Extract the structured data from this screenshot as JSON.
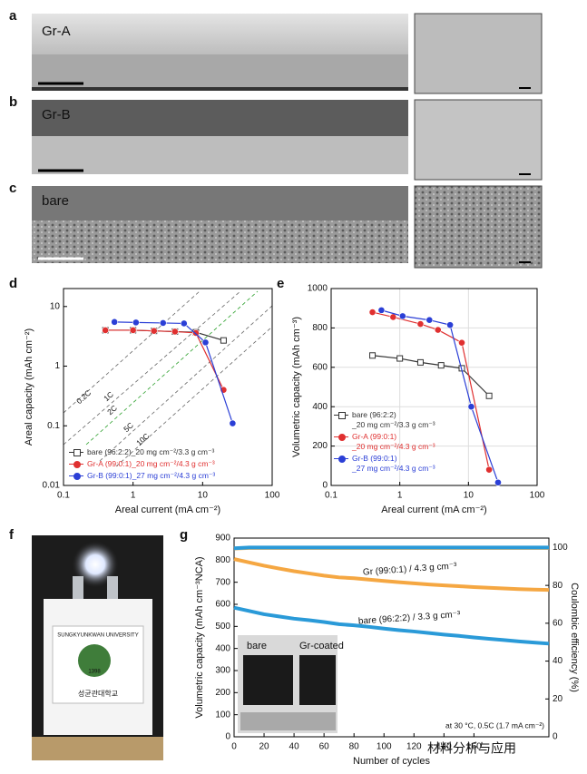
{
  "panel_labels": [
    "a",
    "b",
    "c",
    "d",
    "e",
    "f",
    "g"
  ],
  "images": [
    {
      "label": "Gr-A",
      "color": "#e03030"
    },
    {
      "label": "Gr-B",
      "color": "#2b3fd6"
    },
    {
      "label": "bare",
      "color": "#111111"
    }
  ],
  "photo": {
    "logo_text": "SUNGKYUNKWAN UNIVERSITY",
    "year": "1398",
    "korean": "성균관대학교",
    "inset_bare": "bare",
    "inset_coated": "Gr-coated"
  },
  "watermark": "材料分析与应用",
  "chart_data": [
    {
      "type": "line",
      "xlog": true,
      "ylog": true,
      "grid": false,
      "xlabel": "Areal current (mA cm⁻²)",
      "ylabel": "Areal capacity (mAh cm⁻²)",
      "xlim": [
        0.1,
        100
      ],
      "ylim": [
        0.01,
        20
      ],
      "xticks": [
        0.1,
        1,
        10,
        100
      ],
      "yticks": [
        0.01,
        0.1,
        1,
        10
      ],
      "annotations": [
        {
          "text": "0.2C",
          "color": "#333333"
        },
        {
          "text": "1C",
          "color": "#333333"
        },
        {
          "text": "2C",
          "color": "#2ca02c"
        },
        {
          "text": "5C",
          "color": "#333333"
        },
        {
          "text": "10C",
          "color": "#333333"
        }
      ],
      "series": [
        {
          "name": "bare (96:2:2)_20 mg cm⁻²/3.3 g cm⁻³",
          "color": "#333333",
          "marker": "square",
          "x": [
            0.4,
            1,
            2,
            4,
            8,
            20
          ],
          "values": [
            4.0,
            4.0,
            3.9,
            3.8,
            3.7,
            2.7
          ]
        },
        {
          "name": "Gr-A (99:0:1)_20 mg cm⁻²/4.3 g cm⁻³",
          "color": "#e03030",
          "marker": "circle",
          "x": [
            0.4,
            1,
            2,
            4,
            8,
            20
          ],
          "values": [
            4.0,
            4.0,
            3.9,
            3.8,
            3.6,
            0.4
          ]
        },
        {
          "name": "Gr-B (99:0:1)_27 mg cm⁻²/4.3 g cm⁻³",
          "color": "#2b3fd6",
          "marker": "circle",
          "x": [
            0.54,
            1.1,
            2.7,
            5.4,
            11,
            27
          ],
          "values": [
            5.5,
            5.4,
            5.3,
            5.2,
            2.5,
            0.11
          ]
        }
      ]
    },
    {
      "type": "line",
      "xlog": true,
      "ylog": false,
      "grid": true,
      "xlabel": "Areal current (mA cm⁻²)",
      "ylabel": "Volumetric capacity (mAh cm⁻³)",
      "xlim": [
        0.1,
        100
      ],
      "ylim": [
        0,
        1000
      ],
      "xticks": [
        0.1,
        1,
        10,
        100
      ],
      "yticks": [
        0,
        200,
        400,
        600,
        800,
        1000
      ],
      "series": [
        {
          "name": "bare (96:2:2)\n_20 mg cm⁻²/3.3 g cm⁻³",
          "color": "#333333",
          "marker": "square",
          "x": [
            0.4,
            1,
            2,
            4,
            8,
            20
          ],
          "values": [
            660,
            645,
            625,
            610,
            595,
            455
          ]
        },
        {
          "name": "Gr-A (99:0:1)\n_20 mg cm⁻²/4.3 g cm⁻³",
          "color": "#e03030",
          "marker": "circle",
          "x": [
            0.4,
            0.8,
            2,
            3.6,
            8,
            20
          ],
          "values": [
            880,
            855,
            820,
            790,
            725,
            80
          ]
        },
        {
          "name": "Gr-B (99:0:1)\n_27 mg cm⁻²/4.3 g cm⁻³",
          "color": "#2b3fd6",
          "marker": "circle",
          "x": [
            0.54,
            1.1,
            2.7,
            5.4,
            11,
            27
          ],
          "values": [
            890,
            860,
            840,
            815,
            400,
            15
          ]
        }
      ]
    },
    {
      "type": "line",
      "xlog": false,
      "ylog": false,
      "grid": false,
      "line_width": 4,
      "xlabel": "Number of cycles",
      "ylabel": "Volumetric capacity (mAh cm⁻³NCA)",
      "y2label": "Coulombic efficiency (%)",
      "xlim": [
        0,
        210
      ],
      "ylim": [
        0,
        900
      ],
      "y2lim": [
        0,
        105
      ],
      "xticks": [
        0,
        20,
        40,
        60,
        80,
        100,
        120,
        140,
        160
      ],
      "yticks": [
        0,
        100,
        200,
        300,
        400,
        500,
        600,
        700,
        800,
        900
      ],
      "y2ticks": [
        0,
        20,
        40,
        60,
        80,
        100
      ],
      "annotations": [
        {
          "text": "Gr (99:0:1) / 4.3 g cm⁻³",
          "color": "#e08a1e"
        },
        {
          "text": "bare (96:2:2) / 3.3 g cm⁻³",
          "color": "#1f7fc0"
        },
        {
          "text": "at 30 °C, 0.5C (1.7 mA cm⁻²)",
          "color": "#111111"
        }
      ],
      "x": [
        0,
        10,
        20,
        30,
        40,
        50,
        60,
        70,
        80,
        90,
        100,
        110,
        120,
        130,
        140,
        150,
        160,
        170,
        180,
        190,
        200,
        210
      ],
      "series": [
        {
          "name": "Gr capacity",
          "color": "#f5a742",
          "values": [
            805,
            790,
            775,
            762,
            750,
            740,
            730,
            722,
            718,
            712,
            706,
            700,
            695,
            690,
            686,
            682,
            678,
            675,
            672,
            669,
            667,
            665
          ]
        },
        {
          "name": "bare capacity",
          "color": "#2a9ad8",
          "values": [
            585,
            570,
            555,
            545,
            535,
            528,
            520,
            510,
            505,
            498,
            490,
            483,
            477,
            470,
            463,
            457,
            450,
            444,
            438,
            432,
            427,
            422
          ]
        },
        {
          "name": "Gr CE",
          "color": "#f5a742",
          "axis": "y2",
          "values": [
            99.5,
            99.8,
            99.8,
            99.8,
            99.8,
            99.8,
            99.8,
            99.8,
            99.8,
            99.8,
            99.8,
            99.8,
            99.8,
            99.8,
            99.8,
            99.8,
            99.8,
            99.8,
            99.8,
            99.8,
            99.8,
            99.8
          ]
        },
        {
          "name": "bare CE",
          "color": "#2a9ad8",
          "axis": "y2",
          "values": [
            99.6,
            100,
            100,
            100,
            100,
            100,
            100,
            100,
            100,
            100,
            100,
            100,
            100,
            100,
            100,
            100,
            100,
            100,
            100,
            100,
            100,
            100
          ]
        }
      ]
    }
  ]
}
